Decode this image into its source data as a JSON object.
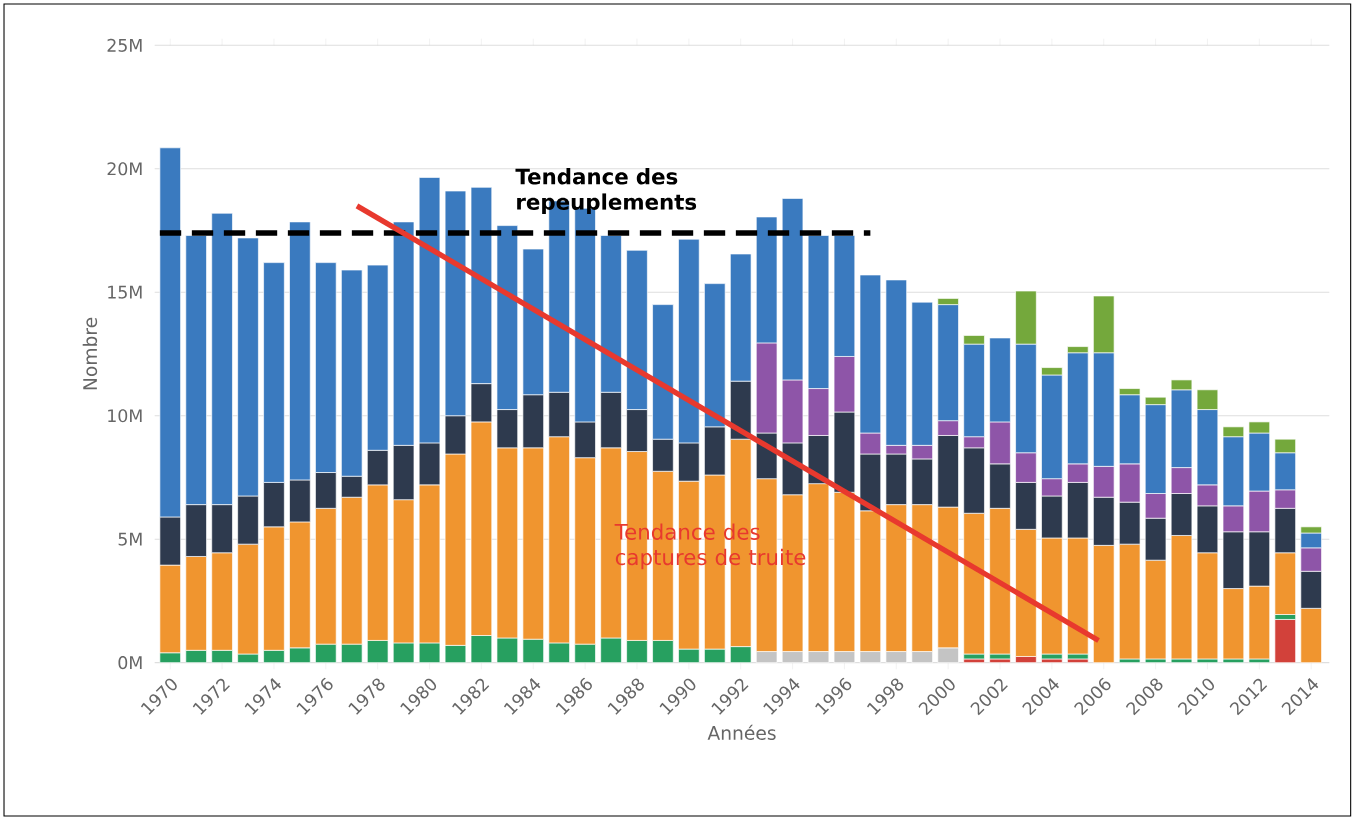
{
  "chart_data": {
    "type": "bar",
    "stacked": true,
    "xlabel": "Années",
    "ylabel": "Nombre",
    "x": [
      1970,
      1971,
      1972,
      1973,
      1974,
      1975,
      1976,
      1977,
      1978,
      1979,
      1980,
      1981,
      1982,
      1983,
      1984,
      1985,
      1986,
      1987,
      1988,
      1989,
      1990,
      1991,
      1992,
      1993,
      1994,
      1995,
      1996,
      1997,
      1998,
      1999,
      2000,
      2001,
      2002,
      2003,
      2004,
      2005,
      2006,
      2007,
      2008,
      2009,
      2010,
      2011,
      2012,
      2013,
      2014
    ],
    "xlim": [
      1969.4,
      2014.7
    ],
    "xticks": [
      1970,
      1972,
      1974,
      1976,
      1978,
      1980,
      1982,
      1984,
      1986,
      1988,
      1990,
      1992,
      1994,
      1996,
      1998,
      2000,
      2002,
      2004,
      2006,
      2008,
      2010,
      2012,
      2014
    ],
    "ylim": [
      0,
      25
    ],
    "yticks": [
      {
        "value": 0,
        "label": "0M"
      },
      {
        "value": 5,
        "label": "5M"
      },
      {
        "value": 10,
        "label": "10M"
      },
      {
        "value": 15,
        "label": "15M"
      },
      {
        "value": 20,
        "label": "20M"
      },
      {
        "value": 25,
        "label": "25M"
      }
    ],
    "grid": "y",
    "series": [
      {
        "color": "#d2413a",
        "values": [
          null,
          null,
          null,
          null,
          null,
          null,
          null,
          null,
          null,
          null,
          null,
          null,
          null,
          null,
          null,
          null,
          null,
          null,
          null,
          null,
          null,
          null,
          null,
          null,
          null,
          null,
          null,
          null,
          null,
          null,
          null,
          0.15,
          0.15,
          0.25,
          0.15,
          0.15,
          null,
          null,
          null,
          null,
          null,
          null,
          null,
          1.75,
          null
        ]
      },
      {
        "color": "#27a060",
        "values": [
          0.4,
          0.5,
          0.5,
          0.35,
          0.5,
          0.6,
          0.75,
          0.75,
          0.9,
          0.8,
          0.8,
          0.7,
          1.1,
          1.0,
          0.95,
          0.8,
          0.75,
          1.0,
          0.9,
          0.9,
          0.55,
          0.55,
          0.65,
          null,
          null,
          null,
          null,
          null,
          null,
          null,
          null,
          0.2,
          0.2,
          null,
          0.2,
          0.2,
          null,
          0.15,
          0.15,
          0.15,
          0.15,
          0.15,
          0.15,
          0.2,
          null
        ]
      },
      {
        "color": "#c4c4c4",
        "values": [
          null,
          null,
          null,
          null,
          null,
          null,
          null,
          null,
          null,
          null,
          null,
          null,
          null,
          null,
          null,
          null,
          null,
          null,
          null,
          null,
          null,
          null,
          null,
          0.45,
          0.45,
          0.45,
          0.45,
          0.45,
          0.45,
          0.45,
          0.6,
          null,
          null,
          null,
          null,
          null,
          null,
          null,
          null,
          null,
          null,
          null,
          null,
          null,
          null
        ]
      },
      {
        "color": "#f0952f",
        "values": [
          3.55,
          3.8,
          3.95,
          4.45,
          5.0,
          5.1,
          5.5,
          5.95,
          6.3,
          5.8,
          6.4,
          7.75,
          8.65,
          7.7,
          7.75,
          8.35,
          7.55,
          7.7,
          7.65,
          6.85,
          6.8,
          7.05,
          8.4,
          7.0,
          6.35,
          6.8,
          6.45,
          5.7,
          5.95,
          5.95,
          5.7,
          5.7,
          5.9,
          5.15,
          4.7,
          4.7,
          4.75,
          4.65,
          4.0,
          5.0,
          4.3,
          2.85,
          2.95,
          2.5,
          2.2
        ]
      },
      {
        "color": "#2e3a4e",
        "values": [
          1.95,
          2.1,
          1.95,
          1.95,
          1.8,
          1.7,
          1.45,
          0.85,
          1.4,
          2.2,
          1.7,
          1.55,
          1.55,
          1.55,
          2.15,
          1.8,
          1.45,
          2.25,
          1.7,
          1.3,
          1.55,
          1.95,
          2.35,
          1.85,
          2.1,
          1.95,
          3.25,
          2.3,
          2.05,
          1.85,
          2.9,
          2.65,
          1.8,
          1.9,
          1.7,
          2.25,
          1.95,
          1.7,
          1.7,
          1.7,
          1.9,
          2.3,
          2.2,
          1.8,
          1.5
        ]
      },
      {
        "color": "#8e55a8",
        "values": [
          null,
          null,
          null,
          null,
          null,
          null,
          null,
          null,
          null,
          null,
          null,
          null,
          null,
          null,
          null,
          null,
          null,
          null,
          null,
          null,
          null,
          null,
          null,
          3.65,
          2.55,
          1.9,
          2.25,
          0.85,
          0.35,
          0.55,
          0.6,
          0.45,
          1.7,
          1.2,
          0.7,
          0.75,
          1.25,
          1.55,
          1.0,
          1.05,
          0.85,
          1.05,
          1.65,
          0.75,
          0.95
        ]
      },
      {
        "color": "#3a7abf",
        "values": [
          14.95,
          10.9,
          11.8,
          10.45,
          8.9,
          10.45,
          8.5,
          8.35,
          7.5,
          9.05,
          10.75,
          9.1,
          7.95,
          7.45,
          5.9,
          7.75,
          8.65,
          6.35,
          6.45,
          5.45,
          8.25,
          5.8,
          5.15,
          5.1,
          7.35,
          6.2,
          4.9,
          6.4,
          6.7,
          5.8,
          4.7,
          3.75,
          3.4,
          4.4,
          4.2,
          4.5,
          4.6,
          2.8,
          3.6,
          3.15,
          3.05,
          2.8,
          2.35,
          1.5,
          0.6
        ]
      },
      {
        "color": "#74a83c",
        "values": [
          null,
          null,
          null,
          null,
          null,
          null,
          null,
          null,
          null,
          null,
          null,
          null,
          null,
          null,
          null,
          null,
          null,
          null,
          null,
          null,
          null,
          null,
          null,
          null,
          null,
          null,
          null,
          null,
          null,
          null,
          0.25,
          0.35,
          null,
          2.15,
          0.3,
          0.25,
          2.3,
          0.25,
          0.3,
          0.4,
          0.8,
          0.4,
          0.45,
          0.55,
          0.25
        ]
      },
      {
        "type": "line",
        "color": "#000000",
        "line_style": "dashed",
        "x": [
          1969.6,
          1997
        ],
        "values": [
          17.4,
          17.4
        ]
      },
      {
        "type": "line",
        "color": "#e8392e",
        "line_style": "solid",
        "x": [
          1977.2,
          2005.8
        ],
        "values": [
          18.5,
          0.9
        ]
      }
    ],
    "annotations": [
      "Tendance des repeuplements",
      "Tendance des captures de truite"
    ]
  }
}
